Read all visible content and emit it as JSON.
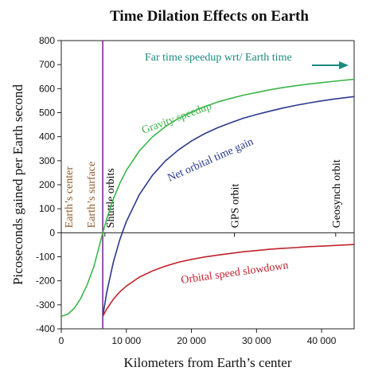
{
  "chart_data": {
    "type": "line",
    "title": "Time Dilation Effects on Earth",
    "xlabel": "Kilometers from Earth’s center",
    "ylabel": "Picoseconds gained per Earth second",
    "xlim": [
      0,
      45000
    ],
    "ylim": [
      -400,
      800
    ],
    "xticks": [
      0,
      10000,
      20000,
      30000,
      40000
    ],
    "xtick_labels": [
      "0",
      "10 000",
      "20 000",
      "30 000",
      "40 000"
    ],
    "yticks": [
      -400,
      -300,
      -200,
      -100,
      0,
      100,
      200,
      300,
      400,
      500,
      600,
      700,
      800
    ],
    "ytick_labels": [
      "-400",
      "-300",
      "-200",
      "-100",
      "0",
      "100",
      "200",
      "300",
      "400",
      "500",
      "600",
      "700",
      "800"
    ],
    "grid": false,
    "earth_radius_km": 6371,
    "series": [
      {
        "name": "Gravity speedup",
        "color": "#3cb54a",
        "x": [
          0,
          1000,
          2000,
          3000,
          4000,
          5000,
          6371,
          7000,
          8000,
          9000,
          10000,
          12000,
          14000,
          16000,
          18000,
          20000,
          22000,
          24000,
          26000,
          28000,
          30000,
          32000,
          34000,
          36000,
          38000,
          40000,
          42000,
          45000
        ],
        "values": [
          -348,
          -339,
          -314,
          -273,
          -215,
          -141,
          -1,
          58,
          140,
          206,
          260,
          341,
          399,
          442,
          476,
          503,
          525,
          544,
          559,
          573,
          584,
          595,
          604,
          612,
          619,
          625,
          631,
          639
        ]
      },
      {
        "name": "Net orbital time gain",
        "color": "#2b3a8c",
        "x": [
          6371,
          7000,
          8000,
          9000,
          10000,
          12000,
          14000,
          16000,
          18000,
          20000,
          22000,
          24000,
          26000,
          28000,
          30000,
          32000,
          34000,
          36000,
          38000,
          40000,
          42000,
          45000
        ],
        "values": [
          -349,
          -247,
          -123,
          -28,
          47,
          159,
          239,
          299,
          345,
          382,
          412,
          437,
          458,
          477,
          492,
          506,
          519,
          530,
          540,
          549,
          557,
          567
        ]
      },
      {
        "name": "Orbital speed slowdown",
        "color": "#c0232c",
        "x": [
          6371,
          7000,
          8000,
          9000,
          10000,
          12000,
          14000,
          16000,
          18000,
          20000,
          22000,
          24000,
          26000,
          28000,
          30000,
          32000,
          34000,
          36000,
          38000,
          40000,
          42000,
          45000
        ],
        "values": [
          -348,
          -317,
          -277,
          -246,
          -222,
          -185,
          -159,
          -139,
          -123,
          -111,
          -101,
          -93,
          -86,
          -79,
          -74,
          -69,
          -65,
          -62,
          -58,
          -56,
          -53,
          -49
        ]
      }
    ],
    "markers": [
      {
        "label": "Earth’s center",
        "x": 0,
        "color": "#8b5a2b"
      },
      {
        "label": "Earth’s surface",
        "x": 6371,
        "color": "#8b5a2b"
      },
      {
        "label": "Shuttle orbits",
        "x": 6700,
        "color": "#000000"
      },
      {
        "label": "GPS orbit",
        "x": 26600,
        "color": "#000000"
      },
      {
        "label": "Geosynch orbit",
        "x": 42164,
        "color": "#000000"
      }
    ],
    "annotations": {
      "far_note": "Far time speedup wrt/ Earth time",
      "far_note_color": "#1a8a80",
      "surface_line_color": "#7b2d8e"
    }
  }
}
